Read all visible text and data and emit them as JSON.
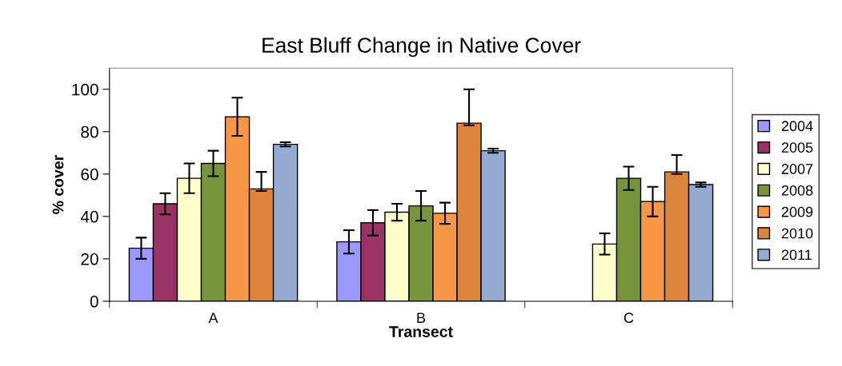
{
  "chart_data": {
    "type": "bar",
    "title": "East Bluff Change in Native Cover",
    "xlabel": "Transect",
    "ylabel": "% cover",
    "categories": [
      "A",
      "B",
      "C"
    ],
    "series": [
      {
        "name": "2004",
        "color": "#9999ff",
        "values": [
          25,
          28,
          null
        ],
        "errors": [
          5,
          5.5,
          null
        ]
      },
      {
        "name": "2005",
        "color": "#993366",
        "values": [
          46,
          37,
          null
        ],
        "errors": [
          5,
          6,
          null
        ]
      },
      {
        "name": "2007",
        "color": "#ffffcc",
        "values": [
          58,
          42,
          27
        ],
        "errors": [
          7,
          4,
          5
        ]
      },
      {
        "name": "2008",
        "color": "#77933c",
        "values": [
          65,
          45,
          58
        ],
        "errors": [
          6,
          7,
          5.5
        ]
      },
      {
        "name": "2009",
        "color": "#f79646",
        "values": [
          87,
          41.5,
          47
        ],
        "errors": [
          9,
          5,
          7
        ]
      },
      {
        "name": "2010",
        "color": "#dd843c",
        "values": [
          53,
          84,
          61
        ],
        "errors": [
          [
            52,
            61
          ],
          [
            83,
            100
          ],
          [
            60,
            69
          ]
        ]
      },
      {
        "name": "2011",
        "color": "#95abd2",
        "values": [
          74,
          71,
          55
        ],
        "errors": [
          1,
          1,
          1
        ]
      }
    ],
    "ylim": [
      0,
      110
    ],
    "yticks": [
      0,
      20,
      40,
      60,
      80,
      100
    ],
    "grid": false,
    "legend": "right"
  }
}
